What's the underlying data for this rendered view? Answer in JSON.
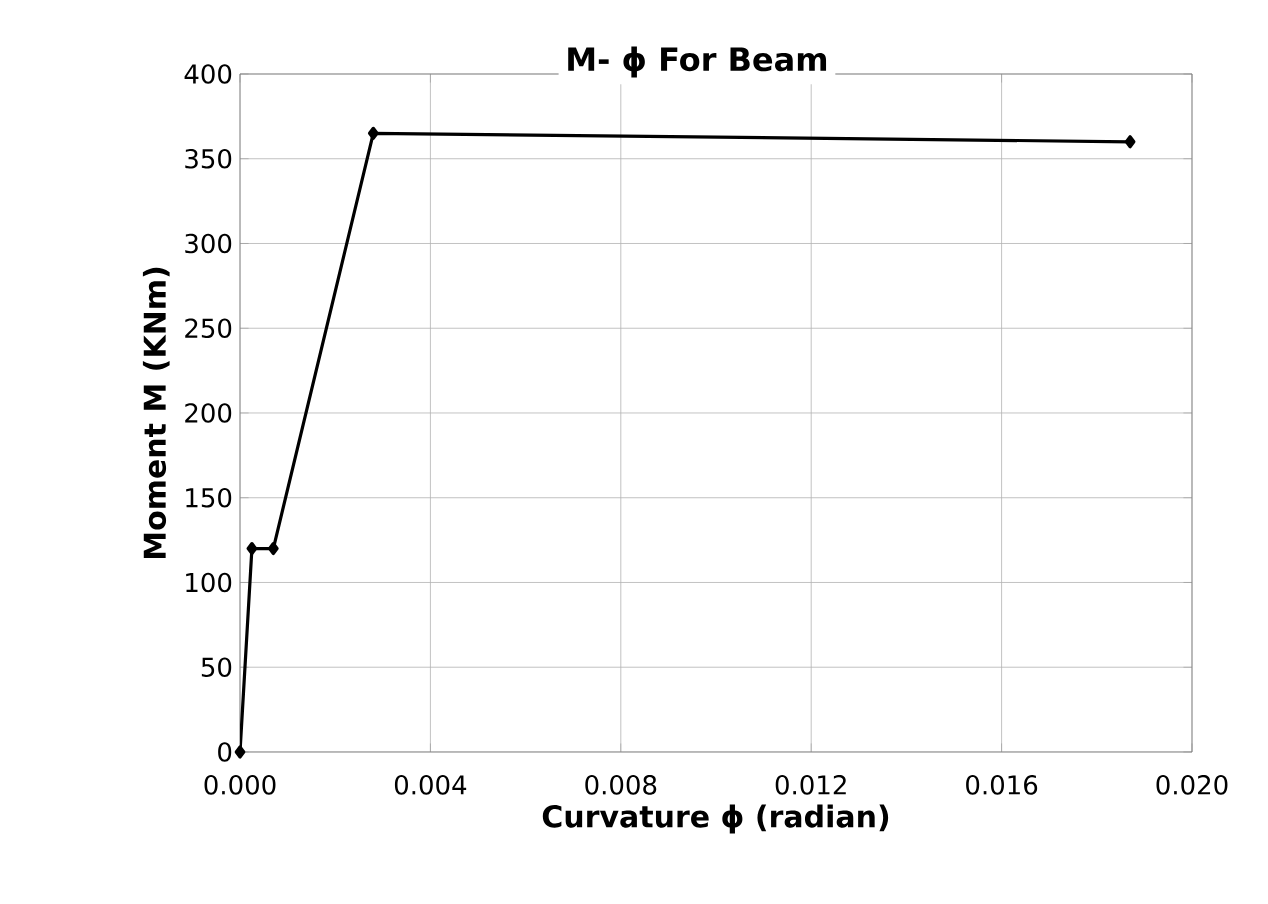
{
  "chart_data": {
    "type": "line",
    "title": "M- ϕ For Beam",
    "xlabel": "Curvature ϕ (radian)",
    "ylabel": "Moment  M (KNm)",
    "x": [
      0,
      0.00025,
      0.0007,
      0.0028,
      0.0187
    ],
    "series": [
      {
        "color": "#000000",
        "values": [
          0,
          120,
          120,
          365,
          360
        ]
      }
    ],
    "xlim": [
      0,
      0.02
    ],
    "ylim": [
      0,
      400
    ],
    "xticks": [
      {
        "value": 0,
        "label": "0.000"
      },
      {
        "value": 0.004,
        "label": "0.004"
      },
      {
        "value": 0.008,
        "label": "0.008"
      },
      {
        "value": 0.012,
        "label": "0.012"
      },
      {
        "value": 0.016,
        "label": "0.016"
      },
      {
        "value": 0.02,
        "label": "0.020"
      }
    ],
    "yticks": [
      0,
      50,
      100,
      150,
      200,
      250,
      300,
      350,
      400
    ],
    "grid": true,
    "marker": "diamond",
    "line_style": "solid"
  }
}
